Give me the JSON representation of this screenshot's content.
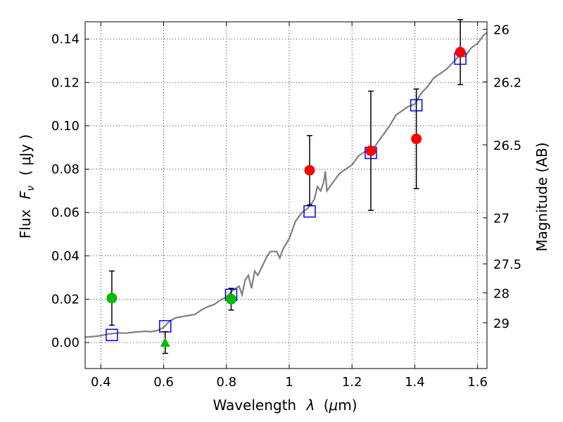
{
  "chart_data": {
    "type": "scatter",
    "xlabel_text": "Wavelength",
    "xlabel_symbol": "λ",
    "xlabel_unit_open": "(",
    "xlabel_unit_mu": "μ",
    "xlabel_unit_rest": "m)",
    "ylabel_text": "Flux",
    "ylabel_symbol": "F",
    "ylabel_subscript": "ν",
    "ylabel_unit": "( μJy )",
    "y2label": "Magnitude (AB)",
    "xlim": [
      0.35,
      1.63
    ],
    "ylim": [
      -0.012,
      0.148
    ],
    "xticks": [
      {
        "value": 0.4,
        "label": "0.4"
      },
      {
        "value": 0.6,
        "label": "0.6"
      },
      {
        "value": 0.8,
        "label": "0.8"
      },
      {
        "value": 1.0,
        "label": "1"
      },
      {
        "value": 1.2,
        "label": "1.2"
      },
      {
        "value": 1.4,
        "label": "1.4"
      },
      {
        "value": 1.6,
        "label": "1.6"
      }
    ],
    "yticks": [
      {
        "value": 0.0,
        "label": "0.00"
      },
      {
        "value": 0.02,
        "label": "0.02"
      },
      {
        "value": 0.04,
        "label": "0.04"
      },
      {
        "value": 0.06,
        "label": "0.06"
      },
      {
        "value": 0.08,
        "label": "0.08"
      },
      {
        "value": 0.1,
        "label": "0.10"
      },
      {
        "value": 0.12,
        "label": "0.12"
      },
      {
        "value": 0.14,
        "label": "0.14"
      }
    ],
    "y2ticks": [
      {
        "label": "26",
        "magnitude": 26.0
      },
      {
        "label": "26.2",
        "magnitude": 26.2
      },
      {
        "label": "26.5",
        "magnitude": 26.5
      },
      {
        "label": "27",
        "magnitude": 27.0
      },
      {
        "label": "27.5",
        "magnitude": 27.5
      },
      {
        "label": "28",
        "magnitude": 28.0
      },
      {
        "label": "29",
        "magnitude": 29.0
      }
    ],
    "grid": true,
    "spectrum": {
      "color": "#808080",
      "points": [
        [
          0.35,
          0.0025
        ],
        [
          0.38,
          0.0028
        ],
        [
          0.4,
          0.0032
        ],
        [
          0.42,
          0.0038
        ],
        [
          0.44,
          0.0042
        ],
        [
          0.46,
          0.0045
        ],
        [
          0.48,
          0.0043
        ],
        [
          0.5,
          0.0047
        ],
        [
          0.52,
          0.0049
        ],
        [
          0.54,
          0.0052
        ],
        [
          0.56,
          0.005
        ],
        [
          0.58,
          0.0055
        ],
        [
          0.6,
          0.007
        ],
        [
          0.62,
          0.01
        ],
        [
          0.64,
          0.0115
        ],
        [
          0.66,
          0.012
        ],
        [
          0.68,
          0.0125
        ],
        [
          0.7,
          0.013
        ],
        [
          0.72,
          0.015
        ],
        [
          0.74,
          0.0165
        ],
        [
          0.76,
          0.0175
        ],
        [
          0.78,
          0.0195
        ],
        [
          0.8,
          0.021
        ],
        [
          0.82,
          0.024
        ],
        [
          0.84,
          0.026
        ],
        [
          0.85,
          0.022
        ],
        [
          0.86,
          0.029
        ],
        [
          0.87,
          0.031
        ],
        [
          0.88,
          0.025
        ],
        [
          0.89,
          0.033
        ],
        [
          0.9,
          0.031
        ],
        [
          0.92,
          0.037
        ],
        [
          0.93,
          0.04
        ],
        [
          0.94,
          0.042
        ],
        [
          0.96,
          0.042
        ],
        [
          0.97,
          0.039
        ],
        [
          0.98,
          0.043
        ],
        [
          1.0,
          0.048
        ],
        [
          1.02,
          0.056
        ],
        [
          1.04,
          0.06
        ],
        [
          1.06,
          0.062
        ],
        [
          1.08,
          0.066
        ],
        [
          1.09,
          0.072
        ],
        [
          1.1,
          0.07
        ],
        [
          1.11,
          0.074
        ],
        [
          1.115,
          0.079
        ],
        [
          1.12,
          0.07
        ],
        [
          1.14,
          0.074
        ],
        [
          1.16,
          0.078
        ],
        [
          1.18,
          0.08
        ],
        [
          1.2,
          0.082
        ],
        [
          1.22,
          0.086
        ],
        [
          1.24,
          0.088
        ],
        [
          1.26,
          0.088
        ],
        [
          1.28,
          0.092
        ],
        [
          1.3,
          0.096
        ],
        [
          1.32,
          0.1
        ],
        [
          1.34,
          0.105
        ],
        [
          1.36,
          0.107
        ],
        [
          1.38,
          0.109
        ],
        [
          1.4,
          0.11
        ],
        [
          1.42,
          0.115
        ],
        [
          1.44,
          0.118
        ],
        [
          1.46,
          0.122
        ],
        [
          1.48,
          0.124
        ],
        [
          1.5,
          0.126
        ],
        [
          1.52,
          0.129
        ],
        [
          1.54,
          0.132
        ],
        [
          1.56,
          0.132
        ],
        [
          1.58,
          0.136
        ],
        [
          1.6,
          0.138
        ],
        [
          1.62,
          0.142
        ],
        [
          1.63,
          0.143
        ]
      ]
    },
    "model_points": {
      "color": "#0000ff",
      "marker": "square-open",
      "points": [
        [
          0.435,
          0.0035
        ],
        [
          0.605,
          0.0075
        ],
        [
          0.815,
          0.022
        ],
        [
          1.065,
          0.0605
        ],
        [
          1.26,
          0.0875
        ],
        [
          1.405,
          0.1095
        ],
        [
          1.545,
          0.131
        ]
      ]
    },
    "observations": [
      {
        "x": 0.435,
        "y": 0.0205,
        "err": 0.0125,
        "color": "#00bb00",
        "marker": "circle"
      },
      {
        "x": 0.605,
        "y": 0.0,
        "err": 0.005,
        "color": "#00bb00",
        "marker": "triangle-up"
      },
      {
        "x": 0.815,
        "y": 0.02,
        "err": 0.005,
        "color": "#00bb00",
        "marker": "circle"
      },
      {
        "x": 1.065,
        "y": 0.0795,
        "err": 0.016,
        "color": "#ff0000",
        "marker": "circle"
      },
      {
        "x": 1.26,
        "y": 0.0885,
        "err": 0.0275,
        "color": "#ff0000",
        "marker": "circle"
      },
      {
        "x": 1.405,
        "y": 0.094,
        "err": 0.023,
        "color": "#ff0000",
        "marker": "circle"
      },
      {
        "x": 1.545,
        "y": 0.134,
        "err": 0.015,
        "color": "#ff0000",
        "marker": "circle"
      }
    ]
  }
}
